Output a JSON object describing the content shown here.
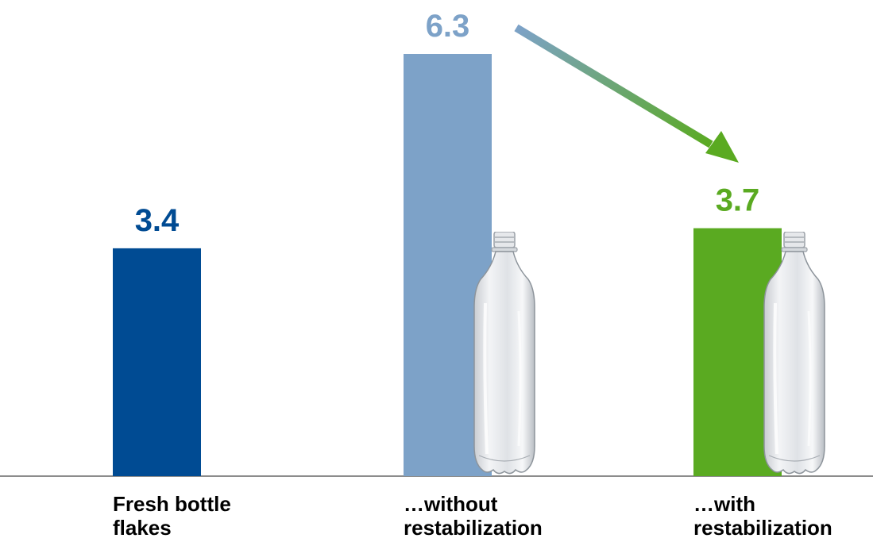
{
  "chart_data": {
    "type": "bar",
    "categories": [
      "Fresh bottle flakes",
      "…without restabilization",
      "…with restabilization"
    ],
    "category_lines": [
      [
        "Fresh bottle",
        "flakes"
      ],
      [
        "…without",
        "restabilization"
      ],
      [
        "…with",
        "restabilization"
      ]
    ],
    "values": [
      3.4,
      6.3,
      3.7
    ],
    "value_labels": [
      "3.4",
      "6.3",
      "3.7"
    ],
    "colors": [
      "#004b93",
      "#7da2c8",
      "#5aaa21"
    ],
    "label_colors": [
      "#004b93",
      "#7da2c8",
      "#5aaa21"
    ],
    "ylim": [
      0,
      6.3
    ],
    "grid": false,
    "legend": "none",
    "annotations": [
      {
        "type": "arrow",
        "from_category": 1,
        "to_category": 2,
        "colors": [
          "#7da2c8",
          "#5aaa21"
        ]
      }
    ],
    "bottle_icons": [
      "bottle-icon",
      "bottle-icon"
    ]
  }
}
